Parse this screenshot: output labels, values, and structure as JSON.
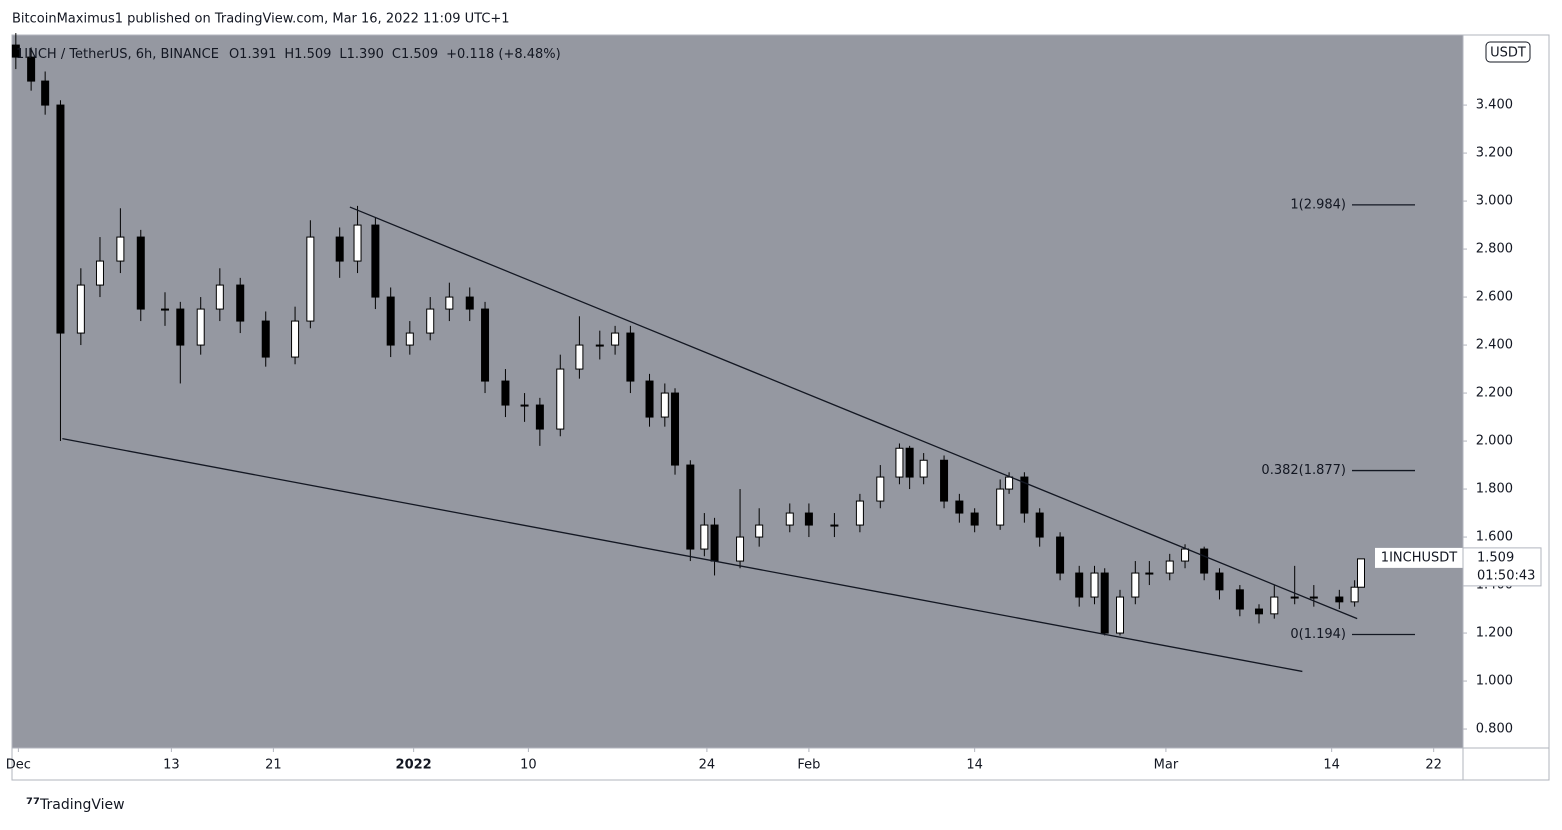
{
  "header": "BitcoinMaximus1 published on TradingView.com, Mar 16, 2022 11:09 UTC+1",
  "footer": "TradingView",
  "chart_data": {
    "type": "candlestick",
    "currency": "USDT",
    "legend": {
      "symbol": "1INCH / TetherUS, 6h, BINANCE",
      "fields": [
        [
          "O",
          "1.391"
        ],
        [
          "H",
          "1.509"
        ],
        [
          "L",
          "1.390"
        ],
        [
          "C",
          "1.509"
        ]
      ],
      "change": "+0.118 (+8.48%)"
    },
    "symbol_label": "1INCHUSDT",
    "countdown": "01:50:43",
    "xlim": [
      -0.5,
      113.3
    ],
    "xticks": [
      {
        "value": 0,
        "label": "Dec"
      },
      {
        "value": 12,
        "label": "13"
      },
      {
        "value": 20,
        "label": "21"
      },
      {
        "value": 31,
        "label": "2022"
      },
      {
        "value": 40,
        "label": "10"
      },
      {
        "value": 54,
        "label": "24"
      },
      {
        "value": 62,
        "label": "Feb"
      },
      {
        "value": 75,
        "label": "14"
      },
      {
        "value": 90,
        "label": "Mar"
      },
      {
        "value": 103,
        "label": "14"
      },
      {
        "value": 111,
        "label": "22"
      }
    ],
    "ylim": [
      0.721,
      3.692
    ],
    "yticks": [
      {
        "value": 0.8,
        "label": "0.800"
      },
      {
        "value": 1.0,
        "label": "1.000"
      },
      {
        "value": 1.2,
        "label": "1.200"
      },
      {
        "value": 1.4,
        "label": "1.400"
      },
      {
        "value": 1.6,
        "label": "1.600"
      },
      {
        "value": 1.8,
        "label": "1.800"
      },
      {
        "value": 2.0,
        "label": "2.000"
      },
      {
        "value": 2.2,
        "label": "2.200"
      },
      {
        "value": 2.4,
        "label": "2.400"
      },
      {
        "value": 2.6,
        "label": "2.600"
      },
      {
        "value": 2.8,
        "label": "2.800"
      },
      {
        "value": 3.0,
        "label": "3.000"
      },
      {
        "value": 3.2,
        "label": "3.200"
      },
      {
        "value": 3.4,
        "label": "3.400"
      }
    ],
    "x": [
      -0.2,
      1,
      2.1,
      3.3,
      4.9,
      6.4,
      8,
      9.6,
      11.5,
      12.7,
      14.3,
      15.8,
      17.4,
      19.4,
      21.7,
      22.9,
      25.2,
      26.6,
      28,
      29.2,
      30.7,
      32.3,
      33.8,
      35.4,
      36.6,
      38.2,
      39.7,
      40.9,
      42.5,
      44,
      45.6,
      46.8,
      48,
      49.5,
      50.7,
      51.5,
      52.7,
      53.8,
      54.6,
      56.6,
      58.1,
      60.5,
      62,
      64,
      66,
      67.6,
      69.1,
      69.9,
      71,
      72.6,
      73.8,
      75,
      77,
      77.7,
      78.9,
      80.1,
      81.7,
      83.2,
      84.4,
      85.2,
      86.4,
      87.6,
      88.7,
      90.3,
      91.5,
      93,
      94.2,
      95.8,
      97.3,
      98.5,
      100.1,
      101.6,
      103.6,
      104.8,
      105.3
    ],
    "open": [
      3.65,
      3.6,
      3.5,
      3.4,
      2.45,
      2.65,
      2.75,
      2.85,
      2.55,
      2.55,
      2.4,
      2.55,
      2.65,
      2.5,
      2.35,
      2.5,
      2.85,
      2.75,
      2.9,
      2.6,
      2.4,
      2.45,
      2.55,
      2.6,
      2.55,
      2.25,
      2.15,
      2.15,
      2.05,
      2.3,
      2.4,
      2.4,
      2.45,
      2.25,
      2.1,
      2.2,
      1.9,
      1.55,
      1.65,
      1.5,
      1.6,
      1.65,
      1.7,
      1.65,
      1.65,
      1.75,
      1.85,
      1.97,
      1.85,
      1.92,
      1.75,
      1.7,
      1.65,
      1.8,
      1.85,
      1.7,
      1.6,
      1.45,
      1.35,
      1.45,
      1.2,
      1.35,
      1.45,
      1.45,
      1.5,
      1.55,
      1.45,
      1.38,
      1.3,
      1.28,
      1.35,
      1.35,
      1.35,
      1.33,
      1.391
    ],
    "high": [
      3.7,
      3.64,
      3.54,
      3.42,
      2.72,
      2.85,
      2.97,
      2.88,
      2.62,
      2.58,
      2.6,
      2.72,
      2.68,
      2.54,
      2.56,
      2.92,
      2.89,
      2.98,
      2.93,
      2.64,
      2.5,
      2.6,
      2.66,
      2.64,
      2.58,
      2.3,
      2.2,
      2.18,
      2.36,
      2.52,
      2.46,
      2.48,
      2.48,
      2.28,
      2.24,
      2.22,
      1.92,
      1.7,
      1.68,
      1.8,
      1.72,
      1.74,
      1.74,
      1.7,
      1.78,
      1.9,
      1.99,
      1.98,
      1.95,
      1.94,
      1.78,
      1.72,
      1.84,
      1.87,
      1.87,
      1.72,
      1.62,
      1.48,
      1.48,
      1.47,
      1.38,
      1.5,
      1.5,
      1.53,
      1.57,
      1.56,
      1.47,
      1.4,
      1.32,
      1.4,
      1.48,
      1.4,
      1.38,
      1.42,
      1.509
    ],
    "low": [
      3.55,
      3.46,
      3.36,
      2.0,
      2.4,
      2.6,
      2.7,
      2.5,
      2.48,
      2.24,
      2.36,
      2.5,
      2.45,
      2.31,
      2.32,
      2.47,
      2.68,
      2.7,
      2.55,
      2.35,
      2.36,
      2.42,
      2.5,
      2.5,
      2.2,
      2.1,
      2.08,
      1.98,
      2.02,
      2.26,
      2.34,
      2.36,
      2.2,
      2.06,
      2.06,
      1.86,
      1.5,
      1.52,
      1.44,
      1.47,
      1.56,
      1.62,
      1.6,
      1.6,
      1.62,
      1.72,
      1.82,
      1.8,
      1.82,
      1.72,
      1.66,
      1.62,
      1.63,
      1.78,
      1.66,
      1.56,
      1.42,
      1.31,
      1.32,
      1.19,
      1.19,
      1.32,
      1.4,
      1.42,
      1.47,
      1.42,
      1.34,
      1.27,
      1.24,
      1.26,
      1.32,
      1.31,
      1.3,
      1.31,
      1.39
    ],
    "close": [
      3.6,
      3.5,
      3.4,
      2.45,
      2.65,
      2.75,
      2.85,
      2.55,
      2.55,
      2.4,
      2.55,
      2.65,
      2.5,
      2.35,
      2.5,
      2.85,
      2.75,
      2.9,
      2.6,
      2.4,
      2.45,
      2.55,
      2.6,
      2.55,
      2.25,
      2.15,
      2.15,
      2.05,
      2.3,
      2.4,
      2.4,
      2.45,
      2.25,
      2.1,
      2.2,
      1.9,
      1.55,
      1.65,
      1.5,
      1.6,
      1.65,
      1.7,
      1.65,
      1.65,
      1.75,
      1.85,
      1.97,
      1.85,
      1.92,
      1.75,
      1.7,
      1.65,
      1.8,
      1.85,
      1.7,
      1.6,
      1.45,
      1.35,
      1.45,
      1.2,
      1.35,
      1.45,
      1.45,
      1.5,
      1.55,
      1.45,
      1.38,
      1.3,
      1.28,
      1.35,
      1.35,
      1.35,
      1.33,
      1.391,
      1.509
    ],
    "trendlines": [
      {
        "x": [
          26.0,
          105.0
        ],
        "y": [
          2.975,
          1.26
        ]
      },
      {
        "x": [
          3.45,
          100.7
        ],
        "y": [
          2.01,
          1.04
        ]
      }
    ],
    "fib_levels": [
      {
        "value": 2.984,
        "label": "1(2.984)"
      },
      {
        "value": 1.877,
        "label": "0.382(1.877)"
      },
      {
        "value": 1.194,
        "label": "0(1.194)"
      }
    ]
  }
}
